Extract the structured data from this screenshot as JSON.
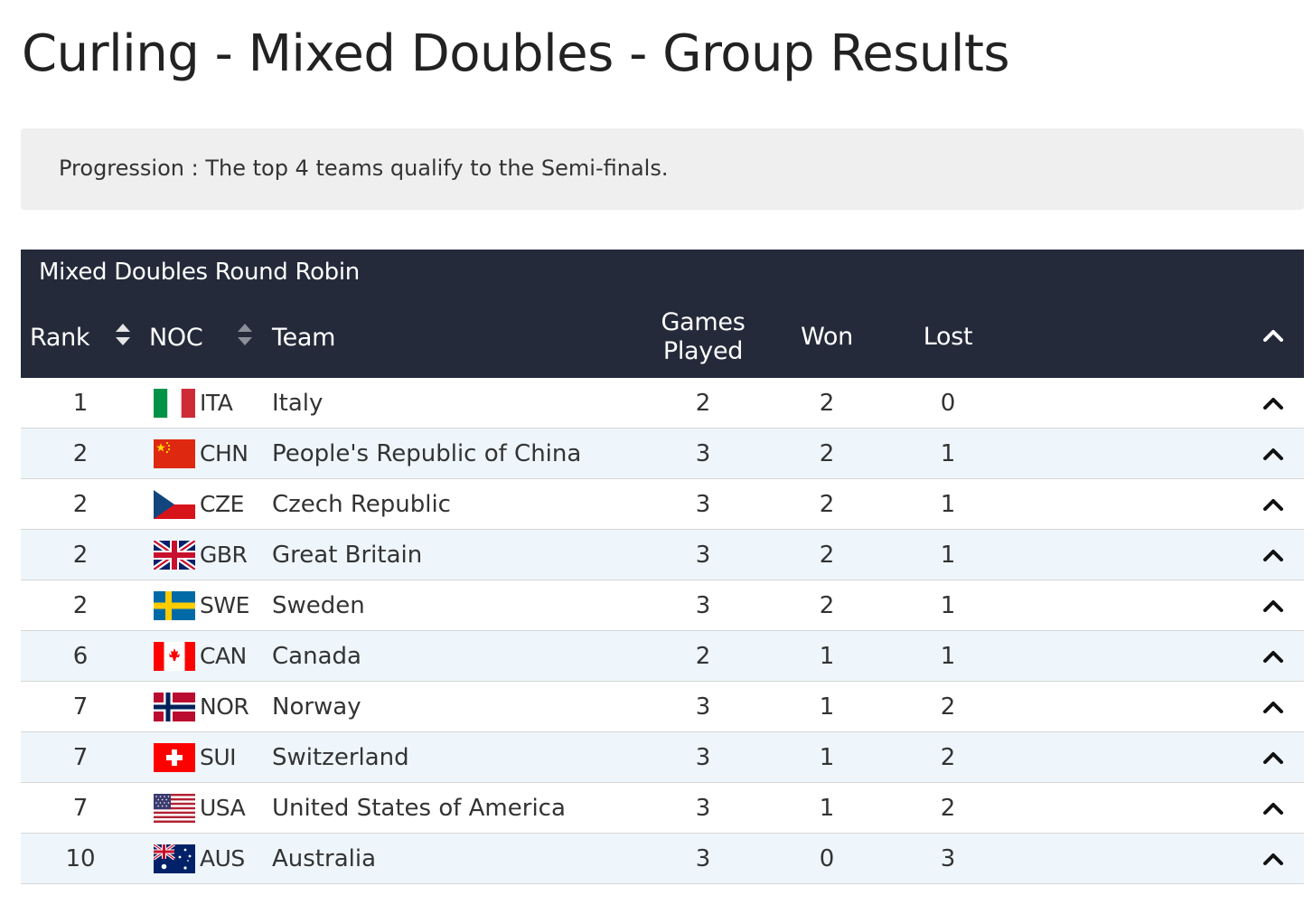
{
  "page_title": "Curling - Mixed Doubles - Group Results",
  "progression": "Progression : The top 4 teams qualify to the Semi-finals.",
  "table": {
    "caption": "Mixed Doubles Round Robin",
    "headers": {
      "rank": "Rank",
      "noc": "NOC",
      "team": "Team",
      "games_played_line1": "Games",
      "games_played_line2": "Played",
      "won": "Won",
      "lost": "Lost"
    },
    "colors": {
      "header_bg": "#242a3a",
      "row_alt_bg": "#eef6fb"
    },
    "rows": [
      {
        "rank": "1",
        "noc": "ITA",
        "team": "Italy",
        "played": "2",
        "won": "2",
        "lost": "0",
        "flag": "flag-ita-icon"
      },
      {
        "rank": "2",
        "noc": "CHN",
        "team": "People's Republic of China",
        "played": "3",
        "won": "2",
        "lost": "1",
        "flag": "flag-chn-icon"
      },
      {
        "rank": "2",
        "noc": "CZE",
        "team": "Czech Republic",
        "played": "3",
        "won": "2",
        "lost": "1",
        "flag": "flag-cze-icon"
      },
      {
        "rank": "2",
        "noc": "GBR",
        "team": "Great Britain",
        "played": "3",
        "won": "2",
        "lost": "1",
        "flag": "flag-gbr-icon"
      },
      {
        "rank": "2",
        "noc": "SWE",
        "team": "Sweden",
        "played": "3",
        "won": "2",
        "lost": "1",
        "flag": "flag-swe-icon"
      },
      {
        "rank": "6",
        "noc": "CAN",
        "team": "Canada",
        "played": "2",
        "won": "1",
        "lost": "1",
        "flag": "flag-can-icon"
      },
      {
        "rank": "7",
        "noc": "NOR",
        "team": "Norway",
        "played": "3",
        "won": "1",
        "lost": "2",
        "flag": "flag-nor-icon"
      },
      {
        "rank": "7",
        "noc": "SUI",
        "team": "Switzerland",
        "played": "3",
        "won": "1",
        "lost": "2",
        "flag": "flag-sui-icon"
      },
      {
        "rank": "7",
        "noc": "USA",
        "team": "United States of America",
        "played": "3",
        "won": "1",
        "lost": "2",
        "flag": "flag-usa-icon"
      },
      {
        "rank": "10",
        "noc": "AUS",
        "team": "Australia",
        "played": "3",
        "won": "0",
        "lost": "3",
        "flag": "flag-aus-icon"
      }
    ]
  }
}
